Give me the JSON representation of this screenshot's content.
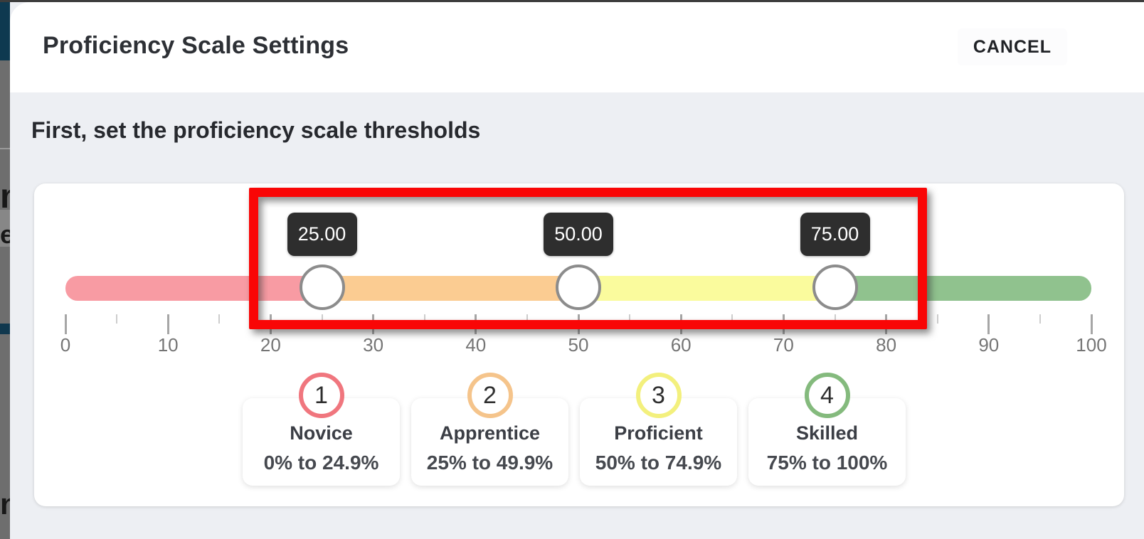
{
  "window": {
    "top_chrome_color": "#3c3c3c"
  },
  "background_page": {
    "navbar_color": "#0e3950",
    "dimmed_color": "#6e6e6e",
    "letter_fragments": {
      "a": "m",
      "b": "e",
      "c": "n"
    }
  },
  "dialog": {
    "title": "Proficiency Scale Settings",
    "cancel_label": "CANCEL",
    "subtitle": "First, set the proficiency scale thresholds"
  },
  "slider": {
    "min": 0,
    "max": 100,
    "thresholds": [
      {
        "value": 25,
        "label": "25.00"
      },
      {
        "value": 50,
        "label": "50.00"
      },
      {
        "value": 75,
        "label": "75.00"
      }
    ],
    "segments": [
      {
        "name": "novice-segment",
        "color": "#f89ba3"
      },
      {
        "name": "apprentice-segment",
        "color": "#fbcc92"
      },
      {
        "name": "proficient-segment",
        "color": "#fafb9d"
      },
      {
        "name": "skilled-segment",
        "color": "#90c28e"
      }
    ],
    "ticks": {
      "minor_step": 5,
      "major_step": 10,
      "labels": [
        "0",
        "10",
        "20",
        "30",
        "40",
        "50",
        "60",
        "70",
        "80",
        "90",
        "100"
      ]
    }
  },
  "annotation": {
    "type": "highlight-box",
    "color": "#f90606"
  },
  "levels": [
    {
      "number": "1",
      "name": "Novice",
      "range": "0% to 24.9%",
      "color": "#f0767e"
    },
    {
      "number": "2",
      "name": "Apprentice",
      "range": "25% to 49.9%",
      "color": "#f5c48b"
    },
    {
      "number": "3",
      "name": "Proficient",
      "range": "50% to 74.9%",
      "color": "#f3f07d"
    },
    {
      "number": "4",
      "name": "Skilled",
      "range": "75% to 100%",
      "color": "#84ba7d"
    }
  ]
}
